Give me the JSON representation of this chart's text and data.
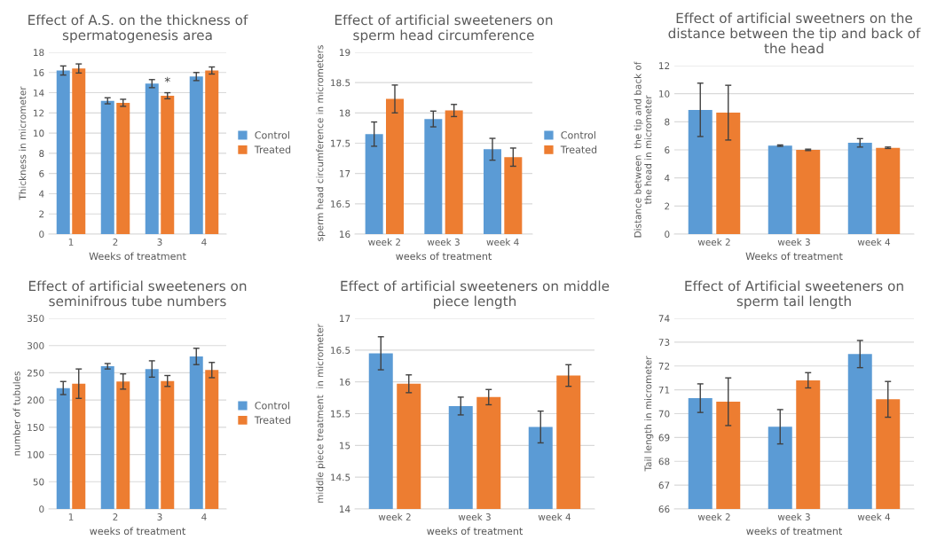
{
  "chart_data": [
    {
      "type": "bar",
      "title": "Effect of A.S. on the thickness of spermatogenesis area",
      "xlabel": "Weeks of treatment",
      "ylabel": "Thickness in micrometer",
      "categories": [
        "1",
        "2",
        "3",
        "4"
      ],
      "ylim": [
        0,
        18
      ],
      "yticks": [
        0,
        2,
        4,
        6,
        8,
        10,
        12,
        14,
        16,
        18
      ],
      "grid": "y",
      "legend": "right",
      "annotations": [
        {
          "text": "*",
          "x": "3",
          "y": 15.0
        }
      ],
      "series": [
        {
          "name": "Control",
          "color": "#5b9bd5",
          "values": [
            16.2,
            13.2,
            14.9,
            15.6
          ],
          "errors": [
            0.45,
            0.3,
            0.4,
            0.4
          ]
        },
        {
          "name": "Treated",
          "color": "#ed7d31",
          "values": [
            16.4,
            13.0,
            13.7,
            16.2
          ],
          "errors": [
            0.45,
            0.35,
            0.3,
            0.35
          ]
        }
      ]
    },
    {
      "type": "bar",
      "title": "Effect of artificial sweeteners on sperm head circumference",
      "xlabel": "weeks of treatment",
      "ylabel": "sperm head circumference in micrometers",
      "categories": [
        "week 2",
        "week 3",
        "week 4"
      ],
      "ylim": [
        16,
        19
      ],
      "yticks": [
        16,
        16.5,
        17,
        17.5,
        18,
        18.5,
        19
      ],
      "grid": "y",
      "legend": "right",
      "series": [
        {
          "name": "Control",
          "color": "#5b9bd5",
          "values": [
            17.65,
            17.9,
            17.4
          ],
          "errors": [
            0.2,
            0.13,
            0.18
          ]
        },
        {
          "name": "Treated",
          "color": "#ed7d31",
          "values": [
            18.23,
            18.04,
            17.27
          ],
          "errors": [
            0.23,
            0.1,
            0.15
          ]
        }
      ]
    },
    {
      "type": "bar",
      "title": "Effect of artificial sweetners on the distance between the tip and back of the head",
      "xlabel": "Weeks of treatment",
      "ylabel": "Distance between  the tip and back of the head in micrometer",
      "categories": [
        "week 2",
        "week 3",
        "week 4"
      ],
      "ylim": [
        0,
        12
      ],
      "yticks": [
        0,
        2,
        4,
        6,
        8,
        10,
        12
      ],
      "grid": "y",
      "series": [
        {
          "color": "#5b9bd5",
          "values": [
            8.85,
            6.3,
            6.5
          ],
          "errors": [
            1.9,
            0.05,
            0.3
          ]
        },
        {
          "color": "#ed7d31",
          "values": [
            8.65,
            6.0,
            6.15
          ],
          "errors": [
            1.95,
            0.05,
            0.05
          ]
        }
      ]
    },
    {
      "type": "bar",
      "title": "Effect of artificial sweeteners on seminifrous tube numbers",
      "xlabel": "weeks of treatment",
      "ylabel": "number of tubules",
      "categories": [
        "1",
        "2",
        "3",
        "4"
      ],
      "ylim": [
        0,
        350
      ],
      "yticks": [
        0,
        50,
        100,
        150,
        200,
        250,
        300,
        350
      ],
      "grid": "y",
      "legend": "right",
      "series": [
        {
          "name": "Control",
          "color": "#5b9bd5",
          "values": [
            222,
            262,
            257,
            280
          ],
          "errors": [
            12,
            5,
            15,
            15
          ]
        },
        {
          "name": "Treated",
          "color": "#ed7d31",
          "values": [
            230,
            234,
            235,
            255
          ],
          "errors": [
            27,
            14,
            10,
            14
          ]
        }
      ]
    },
    {
      "type": "bar",
      "title": "Effect of artificial sweeteners on middle piece length",
      "xlabel": "weeks of treatment",
      "ylabel": "middle piece treatment  in micrometer",
      "categories": [
        "week 2",
        "week 3",
        "week 4"
      ],
      "ylim": [
        14,
        17
      ],
      "yticks": [
        14,
        14.5,
        15,
        15.5,
        16,
        16.5,
        17
      ],
      "grid": "y",
      "series": [
        {
          "color": "#5b9bd5",
          "values": [
            16.45,
            15.62,
            15.29
          ],
          "errors": [
            0.26,
            0.14,
            0.25
          ]
        },
        {
          "color": "#ed7d31",
          "values": [
            15.97,
            15.76,
            16.1
          ],
          "errors": [
            0.14,
            0.12,
            0.17
          ]
        }
      ]
    },
    {
      "type": "bar",
      "title": "Effect of Artificial sweeteners on sperm tail length",
      "xlabel": "weeks of treatment",
      "ylabel": "Tail length in micrometer",
      "categories": [
        "week 2",
        "week 3",
        "week 4"
      ],
      "ylim": [
        66,
        74
      ],
      "yticks": [
        66,
        67,
        68,
        69,
        70,
        71,
        72,
        73,
        74
      ],
      "grid": "y",
      "series": [
        {
          "color": "#5b9bd5",
          "values": [
            70.65,
            69.45,
            72.5
          ],
          "errors": [
            0.6,
            0.72,
            0.57
          ]
        },
        {
          "color": "#ed7d31",
          "values": [
            70.5,
            71.4,
            70.6
          ],
          "errors": [
            1.0,
            0.32,
            0.75
          ]
        }
      ]
    }
  ]
}
